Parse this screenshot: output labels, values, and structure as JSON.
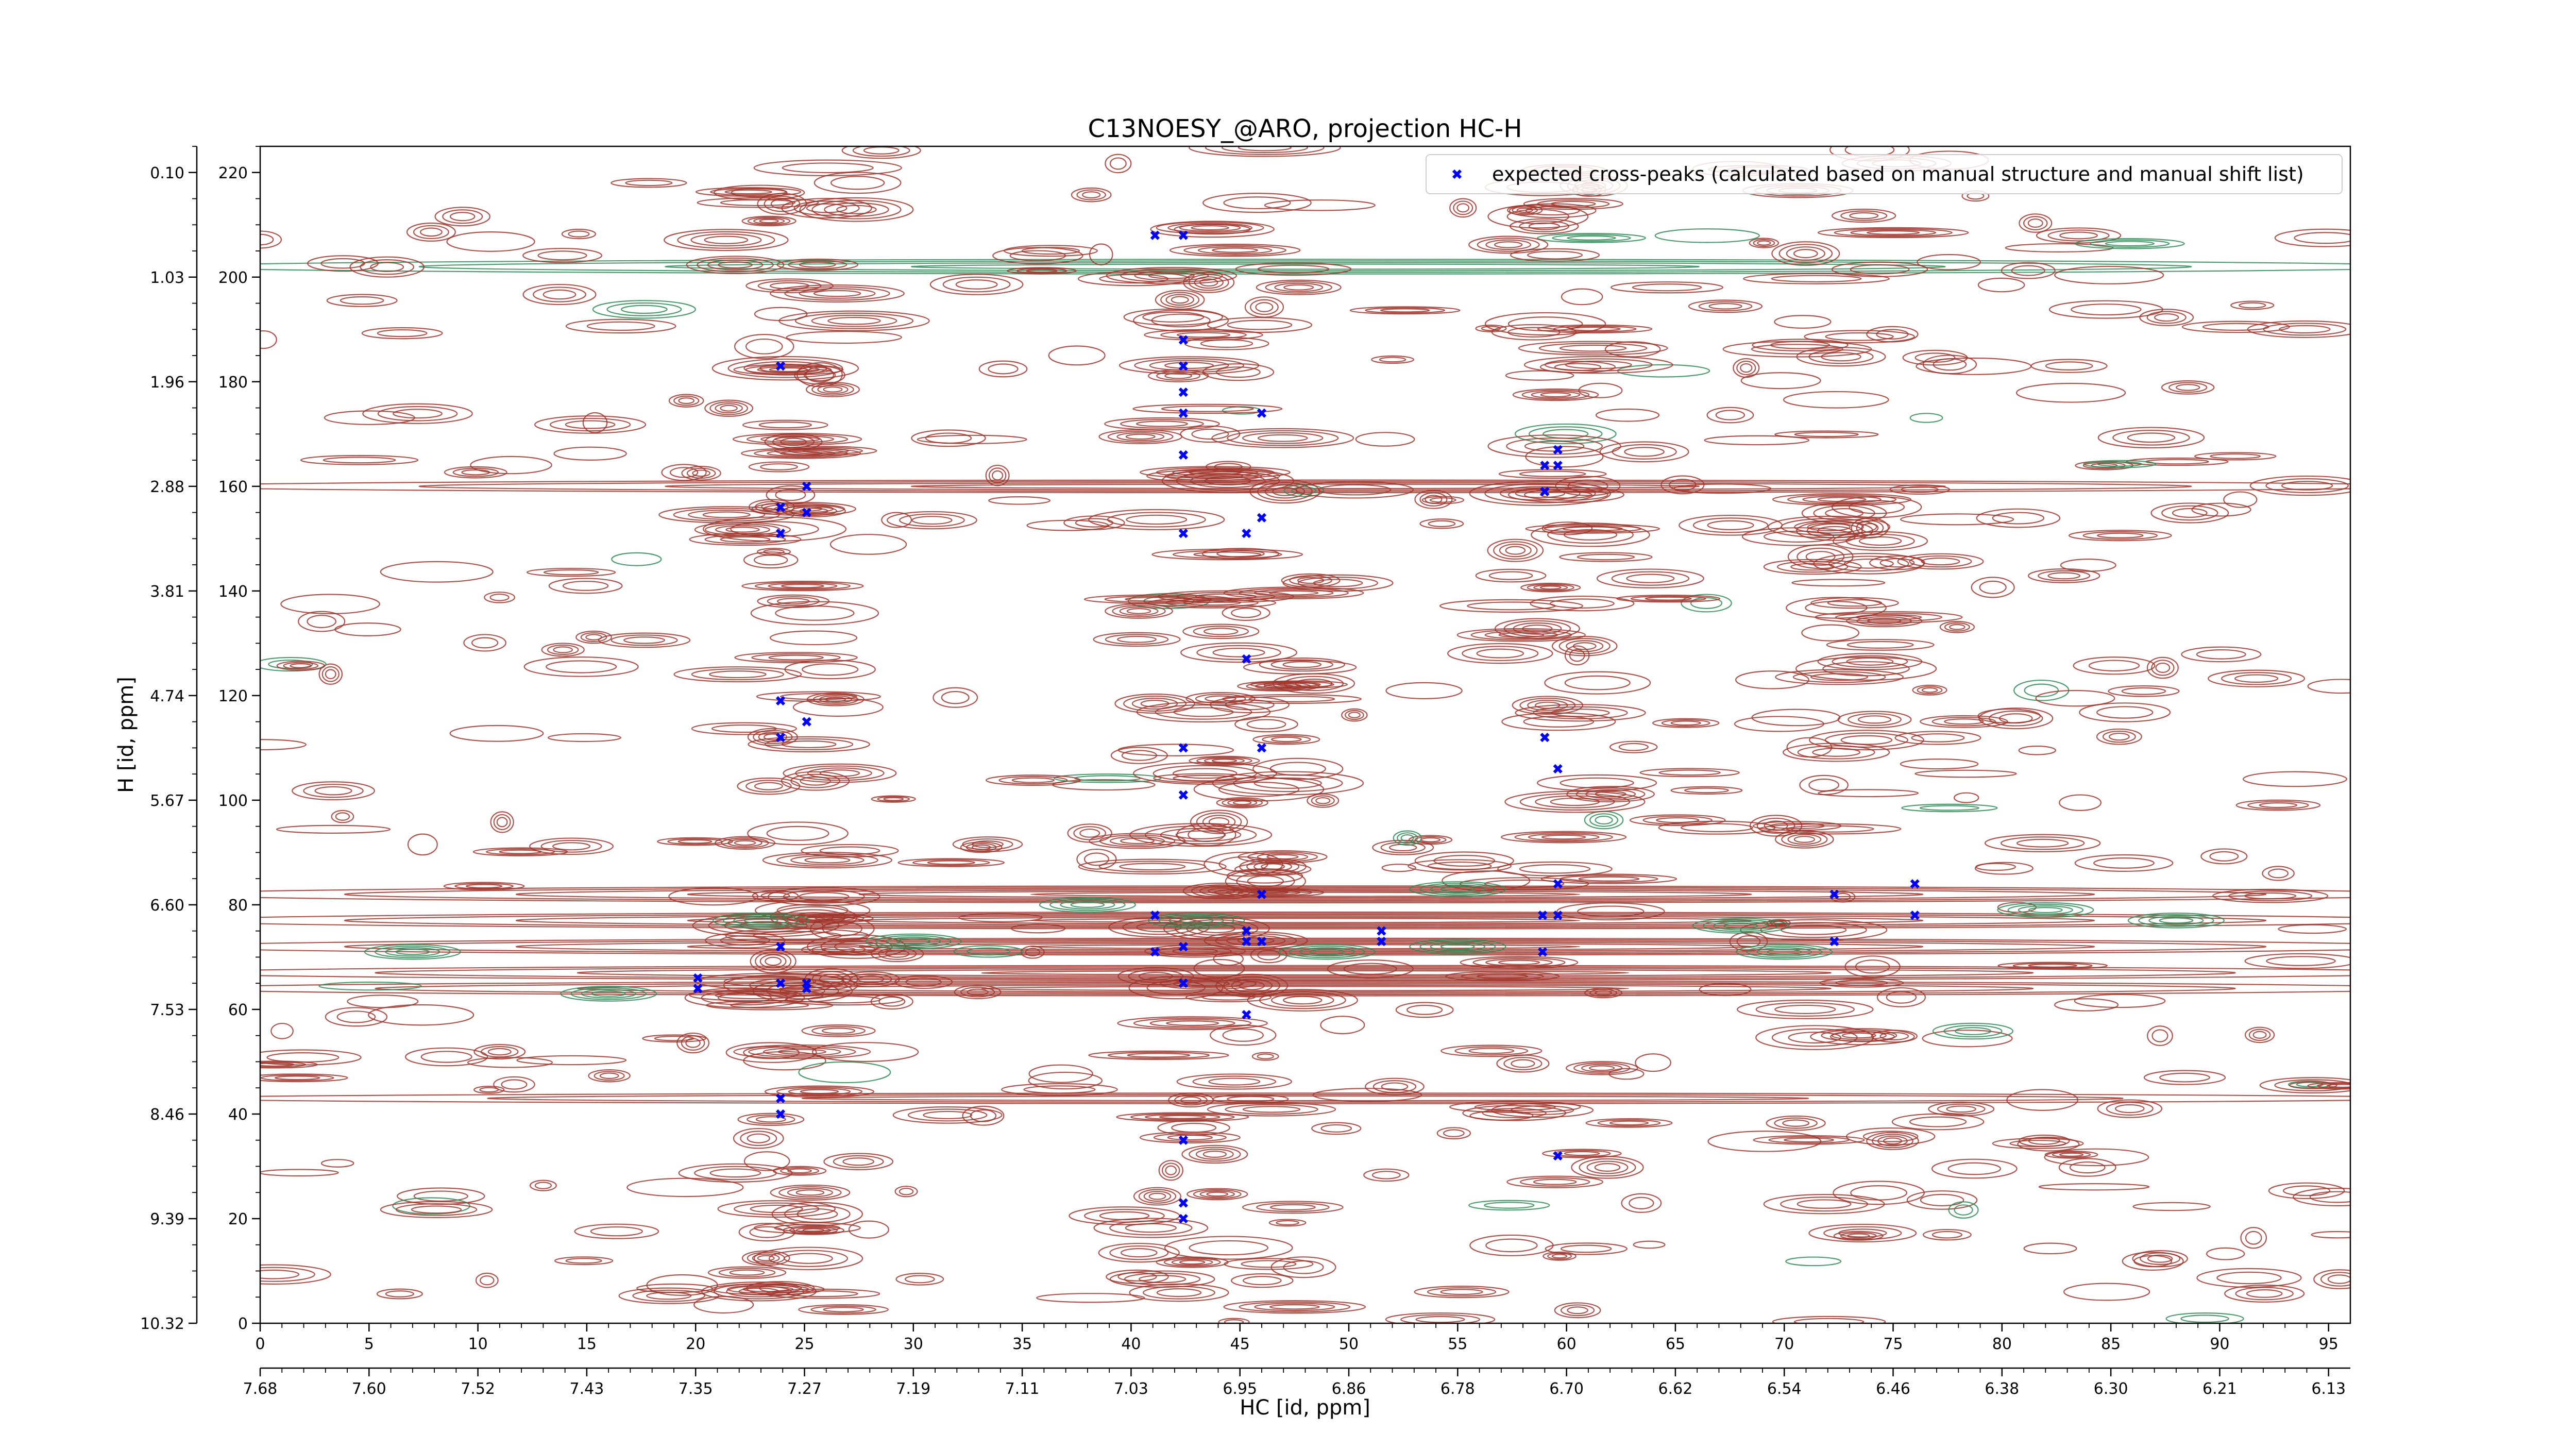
{
  "chart_data": {
    "type": "scatter",
    "title": "C13NOESY_@ARO, projection HC-H",
    "xlabel": "HC [id, ppm]",
    "ylabel": "H [id, ppm]",
    "xlim": [
      0,
      96
    ],
    "ylim": [
      0,
      225
    ],
    "x_ticks": [
      0,
      5,
      10,
      15,
      20,
      25,
      30,
      35,
      40,
      45,
      50,
      55,
      60,
      65,
      70,
      75,
      80,
      85,
      90,
      95
    ],
    "x_ppm_ticks": [
      "7.68",
      "7.60",
      "7.52",
      "7.43",
      "7.35",
      "7.27",
      "7.19",
      "7.11",
      "7.03",
      "6.95",
      "6.86",
      "6.78",
      "6.70",
      "6.62",
      "6.54",
      "6.46",
      "6.38",
      "6.30",
      "6.21",
      "6.13"
    ],
    "y_ticks": [
      0,
      20,
      40,
      60,
      80,
      100,
      120,
      140,
      160,
      180,
      200,
      220
    ],
    "y_ppm_ticks": [
      "10.32",
      "9.39",
      "8.46",
      "7.53",
      "6.60",
      "5.67",
      "4.74",
      "3.81",
      "2.88",
      "1.96",
      "1.03",
      "0.10"
    ],
    "legend": {
      "position": "top-right",
      "label": "expected cross-peaks (calculated based on manual structure and manual shift list)"
    },
    "series": [
      {
        "name": "expected cross-peaks (calculated based on manual structure and manual shift list)",
        "color": "#0000ff",
        "marker": "x",
        "points": [
          [
            41.1,
            208
          ],
          [
            42.4,
            208
          ],
          [
            23.9,
            183
          ],
          [
            42.4,
            188
          ],
          [
            42.4,
            183
          ],
          [
            42.4,
            178
          ],
          [
            42.4,
            174
          ],
          [
            46,
            174
          ],
          [
            42.4,
            166
          ],
          [
            25.1,
            160
          ],
          [
            23.9,
            156
          ],
          [
            25.1,
            155
          ],
          [
            23.9,
            151
          ],
          [
            42.4,
            151
          ],
          [
            45.3,
            151
          ],
          [
            46,
            154
          ],
          [
            59.6,
            167
          ],
          [
            59,
            164
          ],
          [
            59.6,
            164
          ],
          [
            59,
            159
          ],
          [
            45.3,
            127
          ],
          [
            23.9,
            119
          ],
          [
            25.1,
            115
          ],
          [
            23.9,
            112
          ],
          [
            42.4,
            110
          ],
          [
            46,
            110
          ],
          [
            42.4,
            101
          ],
          [
            59,
            112
          ],
          [
            59.6,
            106
          ],
          [
            46,
            82
          ],
          [
            59.6,
            84
          ],
          [
            72.3,
            82
          ],
          [
            76,
            84
          ],
          [
            41.1,
            78
          ],
          [
            58.9,
            78
          ],
          [
            59.6,
            78
          ],
          [
            76,
            78
          ],
          [
            45.3,
            75
          ],
          [
            45.3,
            73
          ],
          [
            46,
            73
          ],
          [
            51.5,
            75
          ],
          [
            51.5,
            73
          ],
          [
            72.3,
            73
          ],
          [
            23.9,
            72
          ],
          [
            41.1,
            71
          ],
          [
            42.4,
            72
          ],
          [
            58.9,
            71
          ],
          [
            20.1,
            66
          ],
          [
            20.1,
            64
          ],
          [
            23.9,
            65
          ],
          [
            25.1,
            65
          ],
          [
            25.1,
            64
          ],
          [
            42.4,
            65
          ],
          [
            45.3,
            59
          ],
          [
            23.9,
            43
          ],
          [
            23.9,
            40
          ],
          [
            42.4,
            35
          ],
          [
            59.6,
            32
          ],
          [
            42.4,
            23
          ],
          [
            42.4,
            20
          ]
        ]
      }
    ],
    "contours": {
      "positive_color": "#a0352b",
      "negative_color": "#2e8b57"
    }
  }
}
